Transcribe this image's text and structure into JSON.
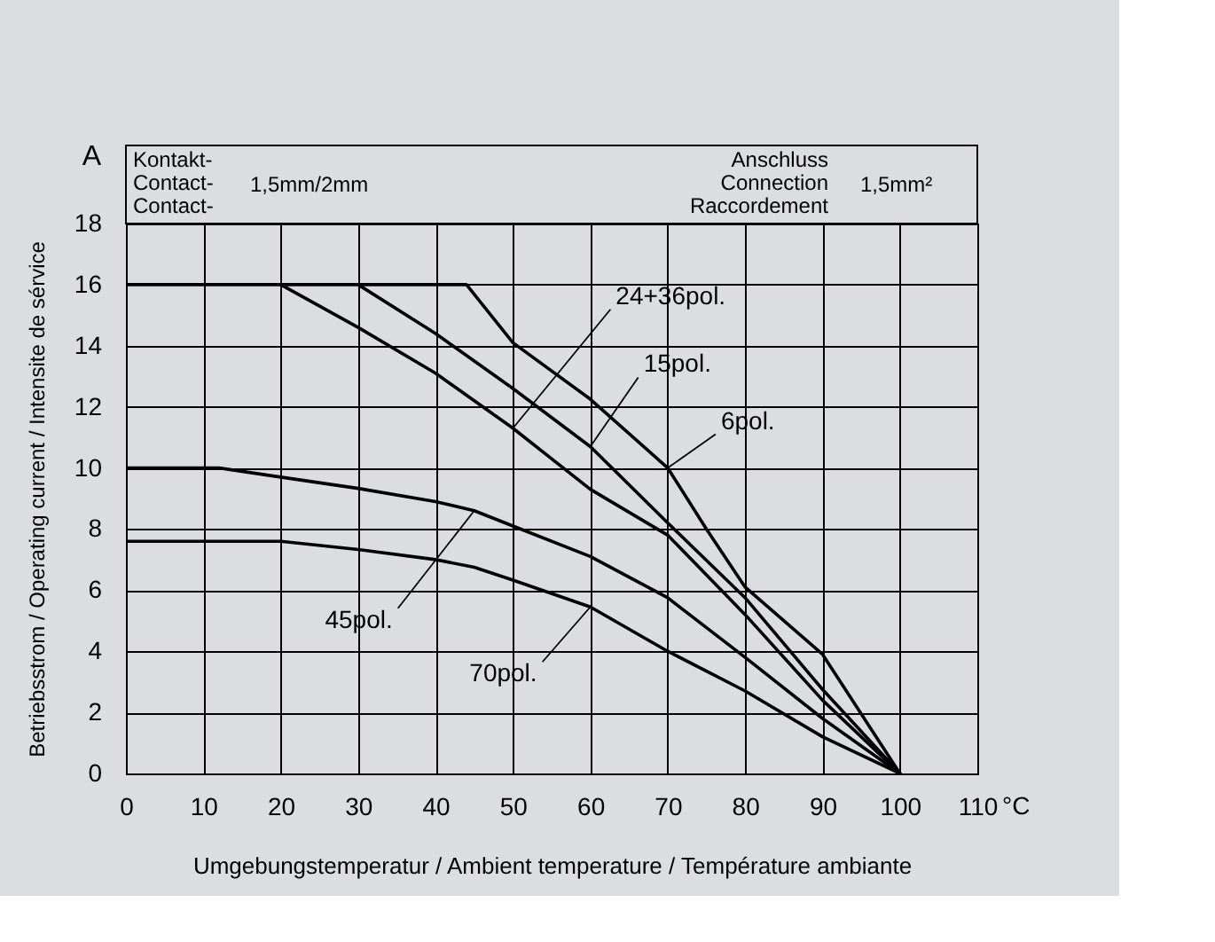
{
  "chart_data": {
    "type": "line",
    "xlabel": "Umgebungstemperatur / Ambient temperature / Température ambiante",
    "ylabel": "Betriebsstrom / Operating current / Intensite de sérvice",
    "xlim": [
      0,
      110
    ],
    "xticks": [
      0,
      10,
      20,
      30,
      40,
      50,
      60,
      70,
      80,
      90,
      100,
      110
    ],
    "ylim": [
      0,
      18
    ],
    "yticks": [
      0,
      2,
      4,
      6,
      8,
      10,
      12,
      14,
      16,
      18
    ],
    "grid": true,
    "marker": "none",
    "line_style": "solid",
    "series": [
      {
        "color": "#000000",
        "x": [
          0,
          44,
          50,
          60,
          70,
          75,
          80,
          90,
          100
        ],
        "values": [
          16,
          16,
          14.1,
          12.25,
          10,
          8,
          6.1,
          3.9,
          0
        ]
      },
      {
        "color": "#000000",
        "x": [
          30,
          40,
          50,
          60,
          70,
          80,
          90,
          100
        ],
        "values": [
          16,
          14.4,
          12.6,
          10.7,
          8.2,
          5.75,
          2.75,
          0
        ]
      },
      {
        "color": "#000000",
        "x": [
          20,
          30,
          40,
          50,
          60,
          70,
          80,
          90,
          100
        ],
        "values": [
          16,
          14.6,
          13.1,
          11.3,
          9.3,
          7.8,
          5.2,
          2.4,
          0
        ]
      },
      {
        "color": "#000000",
        "x": [
          0,
          12,
          20,
          30,
          40,
          45,
          50,
          60,
          70,
          80,
          90,
          100
        ],
        "values": [
          10,
          10,
          9.7,
          9.33,
          8.9,
          8.6,
          8.1,
          7.1,
          5.75,
          3.8,
          1.8,
          0
        ]
      },
      {
        "color": "#000000",
        "x": [
          0,
          20,
          30,
          40,
          45,
          50,
          60,
          70,
          80,
          90,
          100
        ],
        "values": [
          7.6,
          7.6,
          7.33,
          7,
          6.75,
          6.33,
          5.45,
          4,
          2.7,
          1.2,
          0
        ]
      }
    ],
    "annotations": [
      {
        "text": "6pol.",
        "x": 70,
        "y": 10
      },
      {
        "text": "15pol.",
        "x": 60,
        "y": 10.7
      },
      {
        "text": "24+36pol.",
        "x": 50,
        "y": 11.3
      },
      {
        "text": "45pol.",
        "x": 45,
        "y": 8.6
      },
      {
        "text": "70pol.",
        "x": 60,
        "y": 5.45
      },
      "A",
      "°C",
      "Kontakt-\nContact-\nContact-",
      "1,5mm/2mm",
      "Anschluss\nConnection\nRaccordement",
      "1,5mm²"
    ]
  }
}
